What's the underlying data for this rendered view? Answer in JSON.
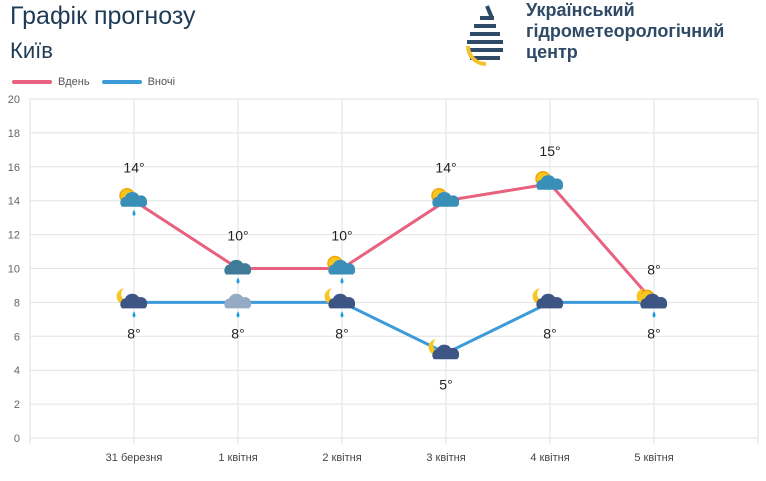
{
  "header": {
    "title": "Графік прогнозу",
    "city": "Київ",
    "org_lines": [
      "Український",
      "гідрометеорологічний",
      "центр"
    ]
  },
  "colors": {
    "day": "#e8617f",
    "night": "#3d9bd9"
  },
  "chart_data": {
    "type": "line",
    "categories": [
      "31 березня",
      "1 квітня",
      "2 квітня",
      "3 квітня",
      "4 квітня",
      "5 квітня"
    ],
    "series": [
      {
        "name": "Вдень",
        "values": [
          14,
          10,
          10,
          14,
          15,
          8
        ],
        "labels": [
          "14°",
          "10°",
          "10°",
          "14°",
          "15°",
          "8°"
        ],
        "icons": [
          "sun-cloud-rain",
          "cloud-rain",
          "sun-cloud-rain",
          "sun-cloud",
          "sun-cloud",
          "sun-cloud-rain"
        ]
      },
      {
        "name": "Вночі",
        "values": [
          8,
          8,
          8,
          5,
          8,
          8
        ],
        "labels": [
          "8°",
          "8°",
          "8°",
          "5°",
          "8°",
          "8°"
        ],
        "icons": [
          "moon-cloud-rain",
          "cloud-rain",
          "moon-cloud-rain",
          "moon-cloud",
          "moon-cloud",
          "moon-cloud-rain"
        ]
      }
    ],
    "yticks": [
      0,
      2,
      4,
      6,
      8,
      10,
      12,
      14,
      16,
      18,
      20
    ],
    "ylim": [
      0,
      20
    ],
    "grid": true,
    "legend": "top-left"
  }
}
